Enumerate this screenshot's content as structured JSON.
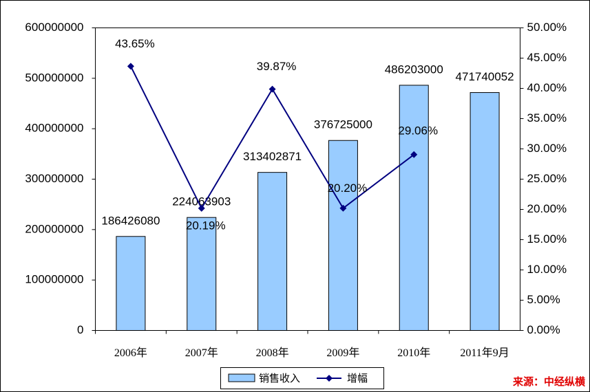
{
  "chart_data": {
    "type": "bar",
    "categories": [
      "2006年",
      "2007年",
      "2008年",
      "2009年",
      "2010年",
      "2011年9月"
    ],
    "series": [
      {
        "name": "销售收入",
        "color": "#99ccff",
        "values": [
          186426080,
          224063903,
          313402871,
          376725000,
          486203000,
          471740052
        ]
      },
      {
        "name": "增幅",
        "type": "line",
        "axis": "y2",
        "color": "#000080",
        "values": [
          43.65,
          20.19,
          39.87,
          20.2,
          29.06,
          null
        ],
        "value_labels": [
          "43.65%",
          "20.19%",
          "39.87%",
          "20.20%",
          "29.06%",
          null
        ]
      }
    ],
    "ylim": [
      0,
      600000000
    ],
    "yticks": [
      0,
      100000000,
      200000000,
      300000000,
      400000000,
      500000000,
      600000000
    ],
    "y2lim": [
      0,
      50
    ],
    "y2ticks": [
      {
        "value": 0,
        "label": "0.00%"
      },
      {
        "value": 5,
        "label": "5.00%"
      },
      {
        "value": 10,
        "label": "10.00%"
      },
      {
        "value": 15,
        "label": "15.00%"
      },
      {
        "value": 20,
        "label": "20.00%"
      },
      {
        "value": 25,
        "label": "25.00%"
      },
      {
        "value": 30,
        "label": "30.00%"
      },
      {
        "value": 35,
        "label": "35.00%"
      },
      {
        "value": 40,
        "label": "40.00%"
      },
      {
        "value": 45,
        "label": "45.00%"
      },
      {
        "value": 50,
        "label": "50.00%"
      }
    ],
    "legend": "bottom",
    "source": "来源：中经纵横"
  }
}
